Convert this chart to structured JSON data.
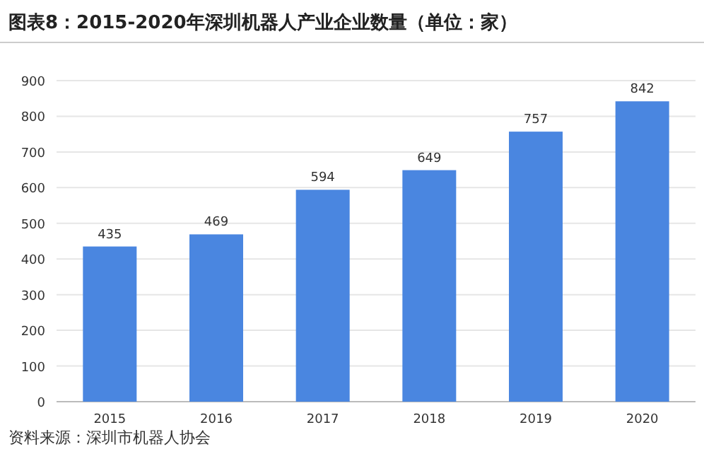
{
  "chart_data": {
    "type": "bar",
    "title": "图表8：2015-2020年深圳机器人产业企业数量（单位：家）",
    "categories": [
      "2015",
      "2016",
      "2017",
      "2018",
      "2019",
      "2020"
    ],
    "values": [
      435,
      469,
      594,
      649,
      757,
      842
    ],
    "color": "#4a86e0",
    "ylim": [
      0,
      900
    ],
    "yticks": [
      0,
      100,
      200,
      300,
      400,
      500,
      600,
      700,
      800,
      900
    ],
    "grid": "y",
    "data_labels": true,
    "annotations": [
      "资料来源：深圳市机器人协会"
    ]
  }
}
